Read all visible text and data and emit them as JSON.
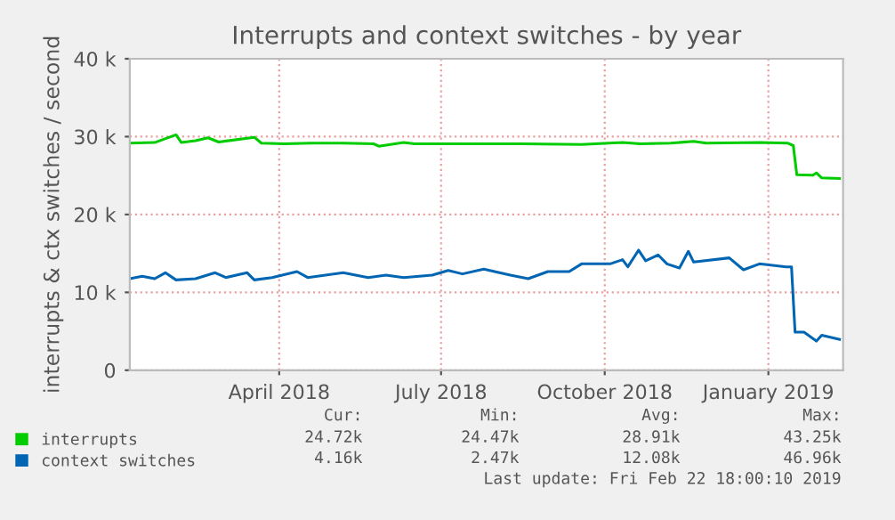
{
  "chart_data": {
    "type": "line",
    "title": "Interrupts and context switches - by year",
    "ylabel": "interrupts & ctx switches / second",
    "xlim": [
      "2018-01-07",
      "2019-02-12"
    ],
    "xticks": [
      {
        "value": "2018-04-01",
        "label": "April 2018"
      },
      {
        "value": "2018-07-01",
        "label": "July 2018"
      },
      {
        "value": "2018-10-01",
        "label": "October 2018"
      },
      {
        "value": "2019-01-01",
        "label": "January 2019"
      }
    ],
    "ylim": [
      0,
      40
    ],
    "yticks": [
      0,
      {
        "value": 10,
        "label": "10 k"
      },
      {
        "value": 20,
        "label": "20 k"
      },
      {
        "value": 30,
        "label": "30 k"
      },
      {
        "value": 40,
        "label": "40 k"
      }
    ],
    "grid": true,
    "legend": "bottom left",
    "marker": "none",
    "line_style": "solid",
    "series": [
      {
        "name": "interrupts",
        "color": "#00cc00",
        "x": [
          "2018-01-07",
          "2018-01-21",
          "2018-02-02",
          "2018-02-05",
          "2018-02-13",
          "2018-02-20",
          "2018-02-26",
          "2018-03-18",
          "2018-03-22",
          "2018-04-04",
          "2018-04-19",
          "2018-05-07",
          "2018-05-24",
          "2018-05-27",
          "2018-06-10",
          "2018-06-16",
          "2018-07-13",
          "2018-08-15",
          "2018-09-18",
          "2018-10-11",
          "2018-10-21",
          "2018-11-07",
          "2018-11-20",
          "2018-11-27",
          "2018-12-27",
          "2019-01-12",
          "2019-01-15",
          "2019-01-17",
          "2019-01-26",
          "2019-01-28",
          "2019-01-31",
          "2019-02-10"
        ],
        "values": [
          29.16,
          29.24,
          30.23,
          29.24,
          29.47,
          29.85,
          29.31,
          29.92,
          29.16,
          29.08,
          29.16,
          29.16,
          29.08,
          28.77,
          29.24,
          29.08,
          29.08,
          29.08,
          29.0,
          29.24,
          29.08,
          29.16,
          29.39,
          29.16,
          29.24,
          29.16,
          28.85,
          25.11,
          25.04,
          25.34,
          24.7,
          24.63
        ]
      },
      {
        "name": "context switches",
        "color": "#0066b3",
        "x": [
          "2018-01-07",
          "2018-01-14",
          "2018-01-21",
          "2018-01-27",
          "2018-02-02",
          "2018-02-13",
          "2018-02-24",
          "2018-03-02",
          "2018-03-14",
          "2018-03-18",
          "2018-03-28",
          "2018-04-11",
          "2018-04-17",
          "2018-05-07",
          "2018-05-21",
          "2018-05-31",
          "2018-06-10",
          "2018-06-26",
          "2018-07-05",
          "2018-07-13",
          "2018-07-25",
          "2018-08-09",
          "2018-08-19",
          "2018-08-30",
          "2018-09-11",
          "2018-09-18",
          "2018-10-04",
          "2018-10-11",
          "2018-10-14",
          "2018-10-20",
          "2018-10-24",
          "2018-10-31",
          "2018-11-05",
          "2018-11-12",
          "2018-11-17",
          "2018-11-20",
          "2018-12-10",
          "2018-12-18",
          "2018-12-27",
          "2019-01-11",
          "2019-01-14",
          "2019-01-16",
          "2019-01-21",
          "2019-01-28",
          "2019-01-31",
          "2019-02-10"
        ],
        "values": [
          11.76,
          12.06,
          11.76,
          12.52,
          11.6,
          11.76,
          12.52,
          11.91,
          12.52,
          11.6,
          11.91,
          12.67,
          11.91,
          12.52,
          11.91,
          12.21,
          11.91,
          12.21,
          12.82,
          12.37,
          12.98,
          12.21,
          11.76,
          12.67,
          12.67,
          13.66,
          13.66,
          14.2,
          13.28,
          15.42,
          14.05,
          14.81,
          13.66,
          13.13,
          15.27,
          13.89,
          14.43,
          12.9,
          13.66,
          13.28,
          13.28,
          4.89,
          4.89,
          3.74,
          4.5,
          3.97
        ]
      }
    ],
    "annotations": [
      "Cur:",
      "Min:",
      "Avg:",
      "Max:",
      "24.72k",
      "24.47k",
      "28.91k",
      "43.25k",
      "4.16k",
      "2.47k",
      "12.08k",
      "46.96k",
      "Last update: Fri Feb 22 18:00:10 2019"
    ]
  }
}
